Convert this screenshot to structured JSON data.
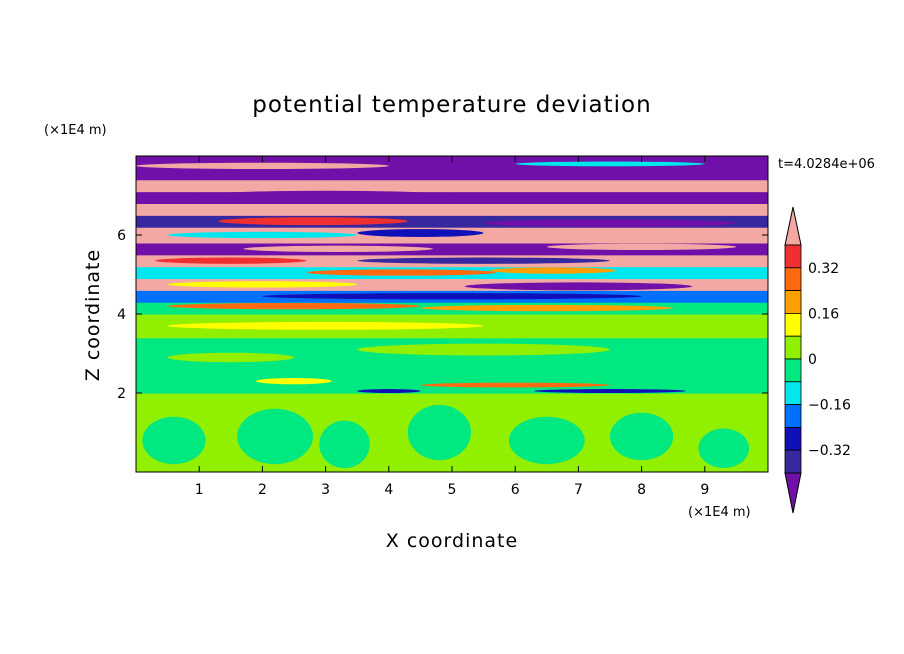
{
  "chart_data": {
    "type": "heatmap",
    "title": "potential temperature deviation",
    "xlabel": "X coordinate",
    "ylabel": "Z coordinate",
    "x_unit": "(×1E4 m)",
    "y_unit": "(×1E4 m)",
    "time_label": "t=4.0284e+06",
    "xlim": [
      0,
      10
    ],
    "ylim": [
      0,
      8
    ],
    "x_ticks": [
      1,
      2,
      3,
      4,
      5,
      6,
      7,
      8,
      9
    ],
    "y_ticks": [
      2,
      4,
      6
    ],
    "colorbar": {
      "labeled_ticks": [
        "0.32",
        "0.16",
        "0",
        "-0.16",
        "-0.32"
      ],
      "tick_values": [
        0.32,
        0.16,
        0,
        -0.16,
        -0.32
      ],
      "levels_top_to_bottom": [
        {
          "range": ">0.4",
          "color": "#f4a8a4"
        },
        {
          "range": "0.32 to 0.4",
          "color": "#f03030"
        },
        {
          "range": "0.24 to 0.32",
          "color": "#ff6a10"
        },
        {
          "range": "0.16 to 0.24",
          "color": "#ffa000"
        },
        {
          "range": "0.08 to 0.16",
          "color": "#ffff00"
        },
        {
          "range": "0 to 0.08",
          "color": "#90f000"
        },
        {
          "range": "-0.08 to 0",
          "color": "#00e880"
        },
        {
          "range": "-0.16 to -0.08",
          "color": "#00e8ee"
        },
        {
          "range": "-0.24 to -0.16",
          "color": "#0070ff"
        },
        {
          "range": "-0.32 to -0.24",
          "color": "#1010b8"
        },
        {
          "range": "-0.4 to -0.32",
          "color": "#3828a0"
        },
        {
          "range": "<-0.4",
          "color": "#7010a8"
        }
      ]
    },
    "horizontal_bands": [
      {
        "z0": 0.0,
        "z1": 2.0,
        "color": "#90f000"
      },
      {
        "z0": 2.0,
        "z1": 2.6,
        "color": "#00e880"
      },
      {
        "z0": 2.6,
        "z1": 3.4,
        "color": "#00e880"
      },
      {
        "z0": 3.4,
        "z1": 4.0,
        "color": "#90f000"
      },
      {
        "z0": 4.0,
        "z1": 4.3,
        "color": "#00e880"
      },
      {
        "z0": 4.3,
        "z1": 4.6,
        "color": "#0070ff"
      },
      {
        "z0": 4.6,
        "z1": 4.9,
        "color": "#f4a8a4"
      },
      {
        "z0": 4.9,
        "z1": 5.2,
        "color": "#00e8ee"
      },
      {
        "z0": 5.2,
        "z1": 5.5,
        "color": "#f4a8a4"
      },
      {
        "z0": 5.5,
        "z1": 5.8,
        "color": "#7010a8"
      },
      {
        "z0": 5.8,
        "z1": 6.2,
        "color": "#f4a8a4"
      },
      {
        "z0": 6.2,
        "z1": 6.5,
        "color": "#3828a0"
      },
      {
        "z0": 6.5,
        "z1": 6.8,
        "color": "#f4a8a4"
      },
      {
        "z0": 6.8,
        "z1": 7.1,
        "color": "#7010a8"
      },
      {
        "z0": 7.1,
        "z1": 7.4,
        "color": "#f4a8a4"
      },
      {
        "z0": 7.4,
        "z1": 7.7,
        "color": "#7010a8"
      },
      {
        "z0": 7.7,
        "z1": 8.0,
        "color": "#7010a8"
      }
    ],
    "blobs": [
      {
        "x": 0.6,
        "z": 0.8,
        "rx": 0.5,
        "rz": 0.6,
        "color": "#00e880"
      },
      {
        "x": 2.2,
        "z": 0.9,
        "rx": 0.6,
        "rz": 0.7,
        "color": "#00e880"
      },
      {
        "x": 3.3,
        "z": 0.7,
        "rx": 0.4,
        "rz": 0.6,
        "color": "#00e880"
      },
      {
        "x": 4.8,
        "z": 1.0,
        "rx": 0.5,
        "rz": 0.7,
        "color": "#00e880"
      },
      {
        "x": 6.5,
        "z": 0.8,
        "rx": 0.6,
        "rz": 0.6,
        "color": "#00e880"
      },
      {
        "x": 8.0,
        "z": 0.9,
        "rx": 0.5,
        "rz": 0.6,
        "color": "#00e880"
      },
      {
        "x": 9.3,
        "z": 0.6,
        "rx": 0.4,
        "rz": 0.5,
        "color": "#00e880"
      },
      {
        "x": 4.0,
        "z": 2.05,
        "rx": 0.5,
        "rz": 0.05,
        "color": "#1010b8"
      },
      {
        "x": 7.5,
        "z": 2.05,
        "rx": 1.2,
        "rz": 0.05,
        "color": "#1010b8"
      },
      {
        "x": 2.5,
        "z": 2.3,
        "rx": 0.6,
        "rz": 0.08,
        "color": "#ffff00"
      },
      {
        "x": 6.0,
        "z": 2.2,
        "rx": 1.5,
        "rz": 0.06,
        "color": "#ff6a10"
      },
      {
        "x": 1.5,
        "z": 2.9,
        "rx": 1.0,
        "rz": 0.12,
        "color": "#90f000"
      },
      {
        "x": 5.5,
        "z": 3.1,
        "rx": 2.0,
        "rz": 0.15,
        "color": "#90f000"
      },
      {
        "x": 3.0,
        "z": 3.7,
        "rx": 2.5,
        "rz": 0.1,
        "color": "#ffff00"
      },
      {
        "x": 2.5,
        "z": 4.2,
        "rx": 2.0,
        "rz": 0.08,
        "color": "#ff6a10"
      },
      {
        "x": 6.5,
        "z": 4.15,
        "rx": 2.0,
        "rz": 0.08,
        "color": "#ffa000"
      },
      {
        "x": 5.0,
        "z": 4.45,
        "rx": 3.0,
        "rz": 0.08,
        "color": "#1010b8"
      },
      {
        "x": 2.0,
        "z": 4.75,
        "rx": 1.5,
        "rz": 0.08,
        "color": "#ffff00"
      },
      {
        "x": 7.0,
        "z": 4.7,
        "rx": 1.8,
        "rz": 0.1,
        "color": "#7010a8"
      },
      {
        "x": 4.2,
        "z": 5.05,
        "rx": 1.5,
        "rz": 0.08,
        "color": "#ff6a10"
      },
      {
        "x": 6.6,
        "z": 5.1,
        "rx": 1.0,
        "rz": 0.08,
        "color": "#ffa000"
      },
      {
        "x": 1.5,
        "z": 5.35,
        "rx": 1.2,
        "rz": 0.08,
        "color": "#f03030"
      },
      {
        "x": 5.5,
        "z": 5.35,
        "rx": 2.0,
        "rz": 0.08,
        "color": "#3828a0"
      },
      {
        "x": 3.2,
        "z": 5.65,
        "rx": 1.5,
        "rz": 0.08,
        "color": "#f4a8a4"
      },
      {
        "x": 8.0,
        "z": 5.7,
        "rx": 1.5,
        "rz": 0.08,
        "color": "#f4a8a4"
      },
      {
        "x": 2.0,
        "z": 6.0,
        "rx": 1.5,
        "rz": 0.08,
        "color": "#00e8ee"
      },
      {
        "x": 4.5,
        "z": 6.05,
        "rx": 1.0,
        "rz": 0.1,
        "color": "#1010b8"
      },
      {
        "x": 2.8,
        "z": 6.35,
        "rx": 1.5,
        "rz": 0.1,
        "color": "#f03030"
      },
      {
        "x": 7.5,
        "z": 6.3,
        "rx": 2.0,
        "rz": 0.1,
        "color": "#7010a8"
      },
      {
        "x": 5.0,
        "z": 6.65,
        "rx": 3.0,
        "rz": 0.08,
        "color": "#f4a8a4"
      },
      {
        "x": 3.0,
        "z": 7.0,
        "rx": 2.0,
        "rz": 0.12,
        "color": "#7010a8"
      },
      {
        "x": 5.5,
        "z": 7.25,
        "rx": 4.0,
        "rz": 0.1,
        "color": "#f4a8a4"
      },
      {
        "x": 5.0,
        "z": 7.55,
        "rx": 4.0,
        "rz": 0.1,
        "color": "#7010a8"
      },
      {
        "x": 2.0,
        "z": 7.75,
        "rx": 2.0,
        "rz": 0.08,
        "color": "#f4a8a4"
      },
      {
        "x": 7.5,
        "z": 7.8,
        "rx": 1.5,
        "rz": 0.06,
        "color": "#00e8ee"
      }
    ]
  }
}
